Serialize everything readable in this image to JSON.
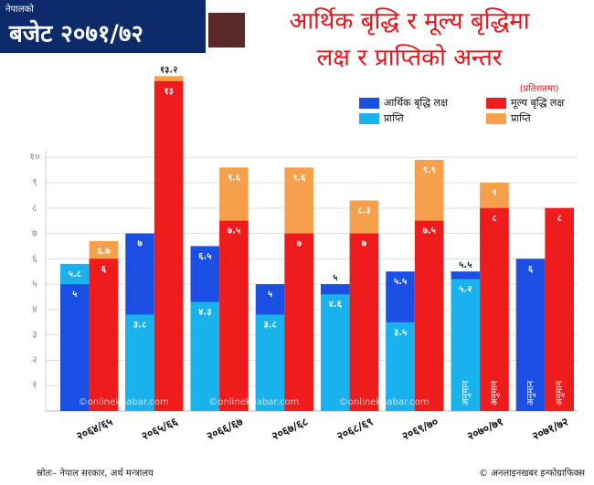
{
  "header": {
    "kicker": "नेपालको",
    "title": "बजेट २०७१/७२"
  },
  "chart_data": {
    "type": "bar",
    "title": [
      "आर्थिक बृद्धि र मूल्य बृद्धिमा",
      "लक्ष र प्राप्तिको अन्तर"
    ],
    "unit": "(प्रतिशतमा)",
    "categories": [
      "२०६४/६५",
      "२०६५/६६",
      "२०६६/६७",
      "२०६७/६८",
      "२०६८/६९",
      "२०६९/७०",
      "२०७०/७१",
      "२०७१/७२"
    ],
    "series": [
      {
        "name": "आर्थिक बृद्धि लक्ष",
        "color": "#1b4fe3",
        "group": 0,
        "values": [
          5,
          7,
          6.5,
          5,
          5,
          5.5,
          5.5,
          6
        ],
        "value_labels": [
          "५",
          "७",
          "६.५",
          "५",
          "५",
          "५.५",
          "५.५",
          "६"
        ],
        "notes": [
          null,
          null,
          null,
          null,
          null,
          null,
          null,
          "अनुमान"
        ]
      },
      {
        "name": "प्राप्ति",
        "color": "#19b2ec",
        "group": 0,
        "values": [
          5.8,
          3.8,
          4.3,
          3.8,
          4.6,
          3.5,
          5.2,
          null
        ],
        "value_labels": [
          "५.८",
          "३.८",
          "४.३",
          "३.८",
          "४.६",
          "३.५",
          "५.२",
          null
        ],
        "notes": [
          null,
          null,
          null,
          null,
          null,
          null,
          "अनुमान",
          null
        ]
      },
      {
        "name": "मूल्य बृद्धि लक्ष",
        "color": "#ee1c1c",
        "group": 1,
        "values": [
          6,
          13,
          7.5,
          7,
          7,
          7.5,
          8,
          8
        ],
        "value_labels": [
          "६",
          "१३",
          "७.५",
          "७",
          "७",
          "७.५",
          "८",
          "८"
        ],
        "notes": [
          null,
          null,
          null,
          null,
          null,
          null,
          "अनुमान",
          "अनुमान"
        ]
      },
      {
        "name": "प्राप्ति",
        "color": "#f7a04b",
        "group": 1,
        "values": [
          6.7,
          13.2,
          9.6,
          9.6,
          8.3,
          9.9,
          9,
          null
        ],
        "value_labels": [
          "६.७",
          "१३.२",
          "९.६",
          "९.६",
          "८.३",
          "९.९",
          "९",
          null
        ],
        "notes": [
          null,
          null,
          null,
          null,
          null,
          null,
          null,
          null
        ]
      }
    ],
    "ylim": [
      0,
      13.5
    ],
    "yticks": [
      {
        "value": 1,
        "label": "१"
      },
      {
        "value": 2,
        "label": "२"
      },
      {
        "value": 3,
        "label": "३"
      },
      {
        "value": 4,
        "label": "४"
      },
      {
        "value": 5,
        "label": "५"
      },
      {
        "value": 6,
        "label": "६"
      },
      {
        "value": 7,
        "label": "७"
      },
      {
        "value": 8,
        "label": "८"
      },
      {
        "value": 9,
        "label": "९"
      },
      {
        "value": 10,
        "label": "१०"
      }
    ],
    "grid": true,
    "watermark": "©onlinekhabar.com"
  },
  "footer": {
    "source": "स्रोतः– नेपाल सरकार, अर्थ मन्त्रालय",
    "credit": "© अनलाइनखबर इन्फोग्राफिक्स"
  }
}
